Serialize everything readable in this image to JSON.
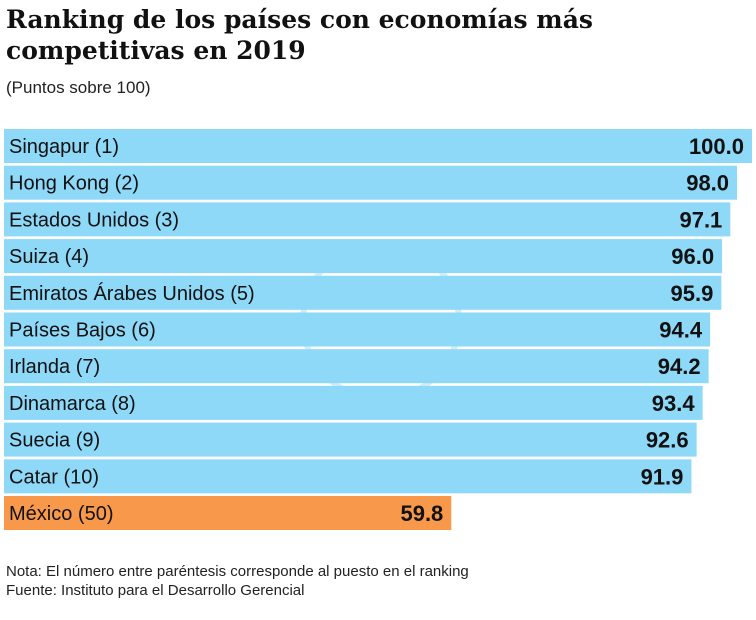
{
  "chart_data": {
    "type": "bar",
    "orientation": "horizontal",
    "title": "Ranking de los países con economías más competitivas en 2019",
    "subtitle": "(Puntos sobre 100)",
    "categories": [
      "Singapur (1)",
      "Hong Kong (2)",
      "Estados Unidos (3)",
      "Suiza (4)",
      "Emiratos Árabes Unidos (5)",
      "Países Bajos (6)",
      "Irlanda (7)",
      "Dinamarca (8)",
      "Suecia (9)",
      "Catar (10)",
      "México (50)"
    ],
    "values": [
      100.0,
      98.0,
      97.1,
      96.0,
      95.9,
      94.4,
      94.2,
      93.4,
      92.6,
      91.9,
      59.8
    ],
    "value_labels": [
      "100.0",
      "98.0",
      "97.1",
      "96.0",
      "95.9",
      "94.4",
      "94.2",
      "93.4",
      "92.6",
      "91.9",
      "59.8"
    ],
    "xlim": [
      0,
      100
    ],
    "grid": false,
    "colors": {
      "default": "#8ed8f8",
      "highlight": "#f7984a",
      "highlight_category": "México (50)"
    }
  },
  "notes": {
    "nota": "Nota: El número entre paréntesis corresponde al puesto en el ranking",
    "fuente": "Fuente: Instituto para el Desarrollo Gerencial"
  }
}
